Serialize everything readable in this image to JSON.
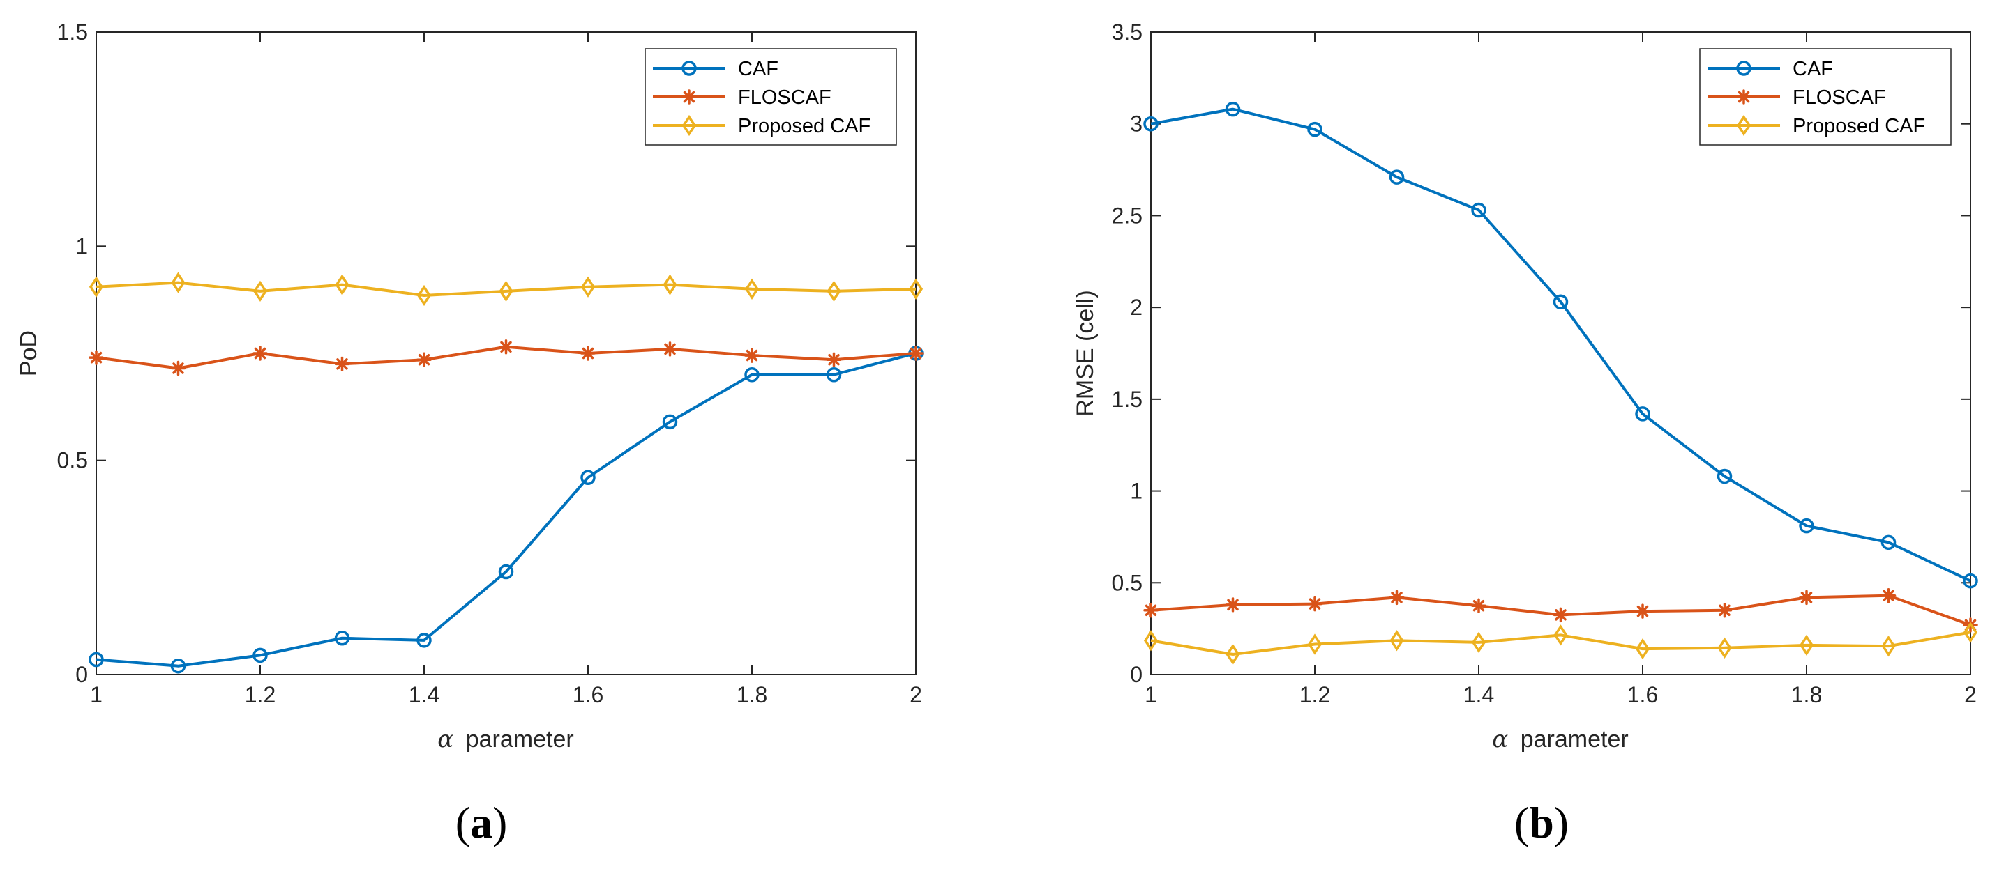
{
  "chart_data": [
    {
      "type": "line",
      "panel_label": "a",
      "xlabel_symbol": "α",
      "xlabel": "parameter",
      "ylabel": "PoD",
      "xlim": [
        1,
        2
      ],
      "ylim": [
        0,
        1.5
      ],
      "xticks": [
        "1",
        "1.2",
        "1.4",
        "1.6",
        "1.8",
        "2"
      ],
      "yticks": [
        "0",
        "0.5",
        "1",
        "1.5"
      ],
      "x": [
        1,
        1.1,
        1.2,
        1.3,
        1.4,
        1.5,
        1.6,
        1.7,
        1.8,
        1.9,
        2
      ],
      "legend_position": "top-right",
      "series": [
        {
          "name": "CAF",
          "color": "#0072BD",
          "marker": "circle",
          "values": [
            0.035,
            0.02,
            0.045,
            0.085,
            0.08,
            0.24,
            0.46,
            0.59,
            0.7,
            0.7,
            0.75
          ]
        },
        {
          "name": "FLOSCAF",
          "color": "#D95319",
          "marker": "asterisk",
          "values": [
            0.74,
            0.715,
            0.75,
            0.725,
            0.735,
            0.765,
            0.75,
            0.76,
            0.745,
            0.735,
            0.75
          ]
        },
        {
          "name": "Proposed CAF",
          "color": "#EDB120",
          "marker": "diamond",
          "values": [
            0.905,
            0.915,
            0.895,
            0.91,
            0.885,
            0.895,
            0.905,
            0.91,
            0.9,
            0.895,
            0.9
          ]
        }
      ]
    },
    {
      "type": "line",
      "panel_label": "b",
      "xlabel_symbol": "α",
      "xlabel": "parameter",
      "ylabel": "RMSE (cell)",
      "xlim": [
        1,
        2
      ],
      "ylim": [
        0,
        3.5
      ],
      "xticks": [
        "1",
        "1.2",
        "1.4",
        "1.6",
        "1.8",
        "2"
      ],
      "yticks": [
        "0",
        "0.5",
        "1",
        "1.5",
        "2",
        "2.5",
        "3",
        "3.5"
      ],
      "x": [
        1,
        1.1,
        1.2,
        1.3,
        1.4,
        1.5,
        1.6,
        1.7,
        1.8,
        1.9,
        2
      ],
      "legend_position": "top-right",
      "series": [
        {
          "name": "CAF",
          "color": "#0072BD",
          "marker": "circle",
          "values": [
            3.0,
            3.08,
            2.97,
            2.71,
            2.53,
            2.03,
            1.42,
            1.08,
            0.81,
            0.72,
            0.51
          ]
        },
        {
          "name": "FLOSCAF",
          "color": "#D95319",
          "marker": "asterisk",
          "values": [
            0.35,
            0.38,
            0.385,
            0.42,
            0.375,
            0.325,
            0.345,
            0.35,
            0.42,
            0.43,
            0.27
          ]
        },
        {
          "name": "Proposed CAF",
          "color": "#EDB120",
          "marker": "diamond",
          "values": [
            0.185,
            0.11,
            0.165,
            0.185,
            0.175,
            0.215,
            0.14,
            0.145,
            0.16,
            0.155,
            0.23
          ]
        }
      ]
    }
  ]
}
